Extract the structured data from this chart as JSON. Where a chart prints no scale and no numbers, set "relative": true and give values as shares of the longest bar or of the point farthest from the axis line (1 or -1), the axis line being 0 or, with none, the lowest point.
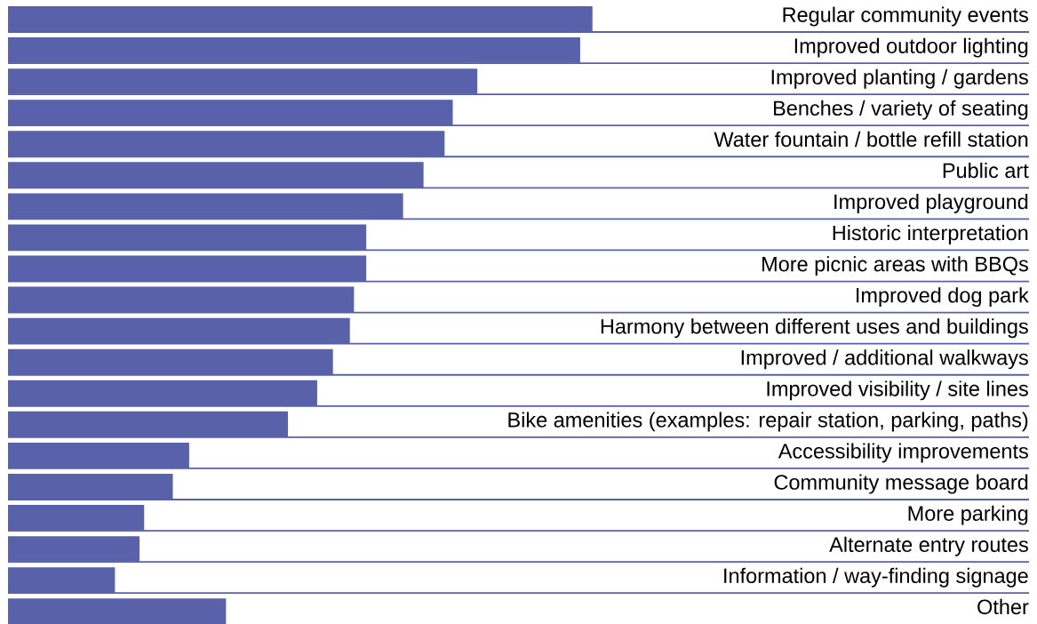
{
  "chart_data": {
    "type": "bar",
    "orientation": "horizontal",
    "relative": true,
    "color": "#5961ab",
    "grid": "y",
    "categories": [
      "Regular community events",
      "Improved outdoor lighting",
      "Improved planting / gardens",
      "Benches / variety of seating",
      "Water fountain / bottle refill station",
      "Public art",
      "Improved playground",
      "Historic interpretation",
      "More picnic areas with BBQs",
      "Improved dog park",
      "Harmony between different uses and buildings",
      "Improved / additional walkways",
      "Improved visibility / site lines",
      "Bike amenities (examples: repair station, parking, paths)",
      "Accessibility improvements",
      "Community message board",
      "More parking",
      "Alternate entry routes",
      "Information / way-finding signage",
      "Other"
    ],
    "values": [
      1.0,
      0.979,
      0.803,
      0.761,
      0.747,
      0.711,
      0.676,
      0.613,
      0.613,
      0.592,
      0.585,
      0.556,
      0.529,
      0.479,
      0.31,
      0.282,
      0.233,
      0.225,
      0.183,
      0.373
    ]
  }
}
